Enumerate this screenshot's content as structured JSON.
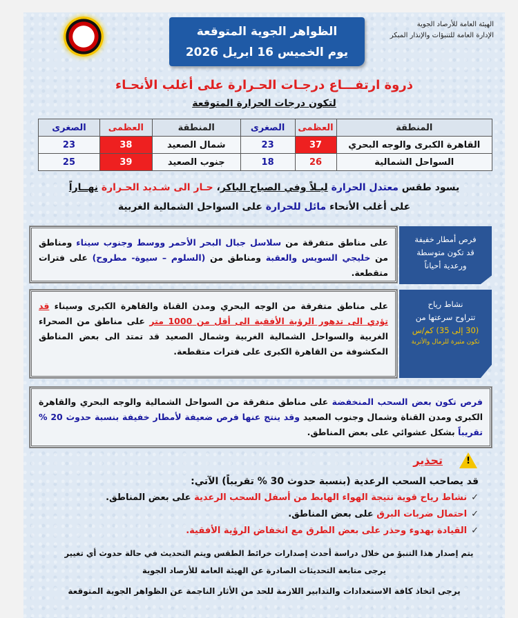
{
  "header": {
    "title_line1": "الظواهر الجوية المتوقعة",
    "title_line2": "يوم الخميس 16 ابريل 2026",
    "org_line1": "الهيئة العامة للأرصاد الجوية",
    "org_line2": "الإدارة العامة للتنبؤات والإنذار المبكر"
  },
  "headline": "ذروة ارتفـــاع درجـات الحـرارة على أغلب الأنحـاء",
  "subhead": "لتكون درجات الحرارة المتوقعة",
  "table": {
    "headers": [
      "المنطقة",
      "العظمى",
      "الصغرى",
      "المنطقة",
      "العظمى",
      "الصغرى"
    ],
    "rows": [
      [
        "القاهرة الكبرى والوجه البحري",
        "37",
        "23",
        "شمال الصعيد",
        "38",
        "23"
      ],
      [
        "السواحل الشمالية",
        "26",
        "18",
        "جنوب الصعيد",
        "39",
        "25"
      ]
    ]
  },
  "summary": {
    "l1a": "يسود طقس ",
    "l1b": "معتدل الحرارة",
    "l1c": " ",
    "l1d": "ليـلاً وفي الصباح الباكر",
    "l1e": "، ",
    "l1f": "حـار الى شـديد الحـرارة",
    "l1g": " ",
    "l1h": "نهــاراً",
    "l2a": "على أغلب الأنحاء ",
    "l2b": "مائل للحرارة",
    "l2c": " على السواحل الشمالية الغربية"
  },
  "rain": {
    "label_1": "فرص أمطار خفيفة",
    "label_2": "قد تكون متوسطة",
    "label_3": "ورعدية أحياناً",
    "t1": "على مناطق متفرقة من ",
    "t2": "سلاسل جبال البحر الأحمر ووسط وجنوب سيناء",
    "t3": " ومناطق من ",
    "t4": "خليجي السويس والعقبة",
    "t5": " ومناطق من ",
    "t6": "(السلوم – سيوة- مطروح)",
    "t7": " على فترات متقطعة."
  },
  "wind": {
    "label_1": "نشاط رياح",
    "label_2": "تتراوح سرعتها من",
    "label_3": "(30 إلى 35) كم/س",
    "label_4": "تكون مثيرة للرمال والأتربة",
    "t1": "على مناطق متفرقة من الوجه البحري ومدن القناة والقاهرة الكبرى وسيناء ",
    "t2": "قد تؤدي الى تدهور الرؤية الأفقية الى أقل من 1000 متر",
    "t3": " على مناطق من الصحراء الغربية والسواحل الشمالية الغربية وشمال الصعيد قد تمتد الى بعض المناطق المكشوفة من القاهرة الكبرى على فترات متقطعة."
  },
  "clouds": {
    "t1": "فرص تكون بعض السحب المنخفضة",
    "t2": " على مناطق متفرقة من السواحل الشمالية والوجه البحري والقاهرة الكبرى ومدن القناة وشمال وجنوب الصعيد ",
    "t3": "وقد ينتج عنها فرص ضعيفة لأمطار خفيفة بنسبة حدوث 20 % تقريباً",
    "t4": " بشكل عشوائي على بعض المناطق."
  },
  "warning": {
    "title": "تحذير",
    "intro": "قد يصاحب السحب الرعدية (بنسبة حدوث 30 % تقريباً) الآتي:",
    "b1a": "نشاط رياح قوية نتيجة الهواء الهابط من أسفل السحب الرعدية",
    "b1b": " على بعض المناطق.",
    "b2a": "احتمال ضربات البرق",
    "b2b": " على بعض المناطق.",
    "b3a": "القيادة بهدوء وحذر على بعض الطرق مع انخفاض الرؤية الأفقية."
  },
  "footer": {
    "l1": "يتم إصدار هذا التنبؤ من خلال دراسة أحدث إصدارات خرائط الطقس ويتم التحديث في حالة حدوث أي تغيير",
    "l2": "يرجى متابعة التحديثات الصادرة عن الهيئة العامة للأرصاد الجوية",
    "l3": "يرجى اتخاذ كافة الاستعدادات والتدابير اللازمة للحد من الأثار الناجمة عن الظواهر الجوية المتوقعة"
  },
  "colors": {
    "red": "#e02020",
    "blue": "#1a1aa0",
    "banner": "#1f5aa6"
  },
  "icons": {
    "warning": "warning-triangle-icon",
    "check": "check-icon"
  }
}
